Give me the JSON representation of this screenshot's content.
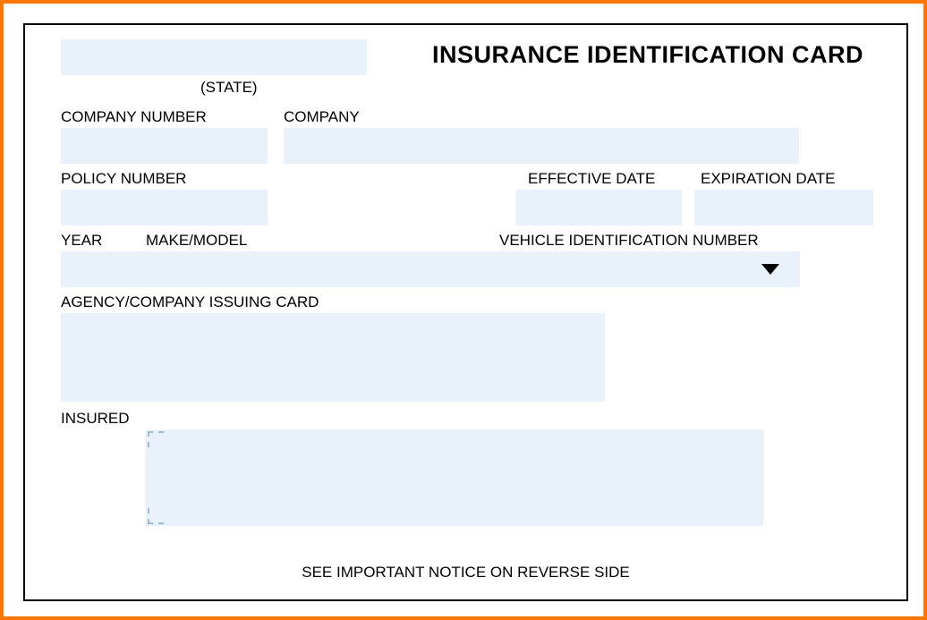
{
  "title": "INSURANCE IDENTIFICATION CARD",
  "labels": {
    "state": "(STATE)",
    "companyNumber": "COMPANY NUMBER",
    "company": "COMPANY",
    "policyNumber": "POLICY NUMBER",
    "effectiveDate": "EFFECTIVE DATE",
    "expirationDate": "EXPIRATION DATE",
    "year": "YEAR",
    "makeModel": "MAKE/MODEL",
    "vin": "VEHICLE IDENTIFICATION NUMBER",
    "agency": "AGENCY/COMPANY ISSUING CARD",
    "insured": "INSURED"
  },
  "footer": "SEE IMPORTANT NOTICE ON REVERSE SIDE",
  "style": {
    "fieldBackground": "#e9f2fa",
    "outerBorder": "#ff7700",
    "innerBorder": "#000000",
    "textColor": "#000000",
    "cropMarkColor": "#9db9d4",
    "titleFontSize": 27,
    "labelFontSize": 17
  }
}
